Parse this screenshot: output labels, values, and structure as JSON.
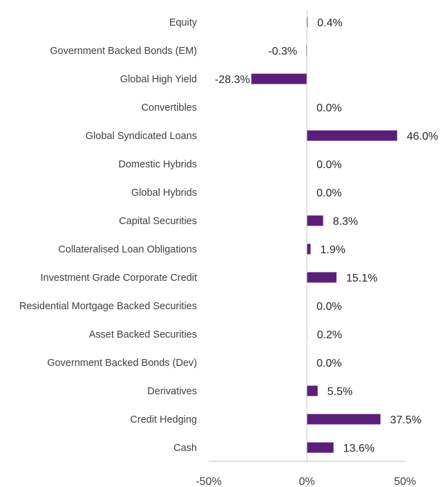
{
  "chart_data": {
    "type": "bar",
    "orientation": "horizontal",
    "categories": [
      "Equity",
      "Government Backed Bonds (EM)",
      "Global High Yield",
      "Convertibles",
      "Global Syndicated Loans",
      "Domestic Hybrids",
      "Global Hybrids",
      "Capital Securities",
      "Collateralised Loan Obligations",
      "Investment Grade Corporate Credit",
      "Residential Mortgage Backed Securities",
      "Asset Backed Securities",
      "Government Backed Bonds (Dev)",
      "Derivatives",
      "Credit Hedging",
      "Cash"
    ],
    "values": [
      0.4,
      -0.3,
      -28.3,
      0.0,
      46.0,
      0.0,
      0.0,
      8.3,
      1.9,
      15.1,
      0.0,
      0.2,
      0.0,
      5.5,
      37.5,
      13.6
    ],
    "value_labels": [
      "0.4%",
      "-0.3%",
      "-28.3%",
      "0.0%",
      "46.0%",
      "0.0%",
      "0.0%",
      "8.3%",
      "1.9%",
      "15.1%",
      "0.0%",
      "0.2%",
      "0.0%",
      "5.5%",
      "37.5%",
      "13.6%"
    ],
    "xlim": [
      -50,
      50
    ],
    "xticks": [
      -50,
      0,
      50
    ],
    "xtick_labels": [
      "-50%",
      "0%",
      "50%"
    ],
    "title": "",
    "xlabel": "",
    "ylabel": "",
    "grid": false,
    "legend": "none",
    "colors": {
      "bar": "#5a1f78",
      "axis": "#c3d3a8",
      "zero_line": "#c8c8c8",
      "label_text": "#404040",
      "value_text": "#262626"
    }
  }
}
